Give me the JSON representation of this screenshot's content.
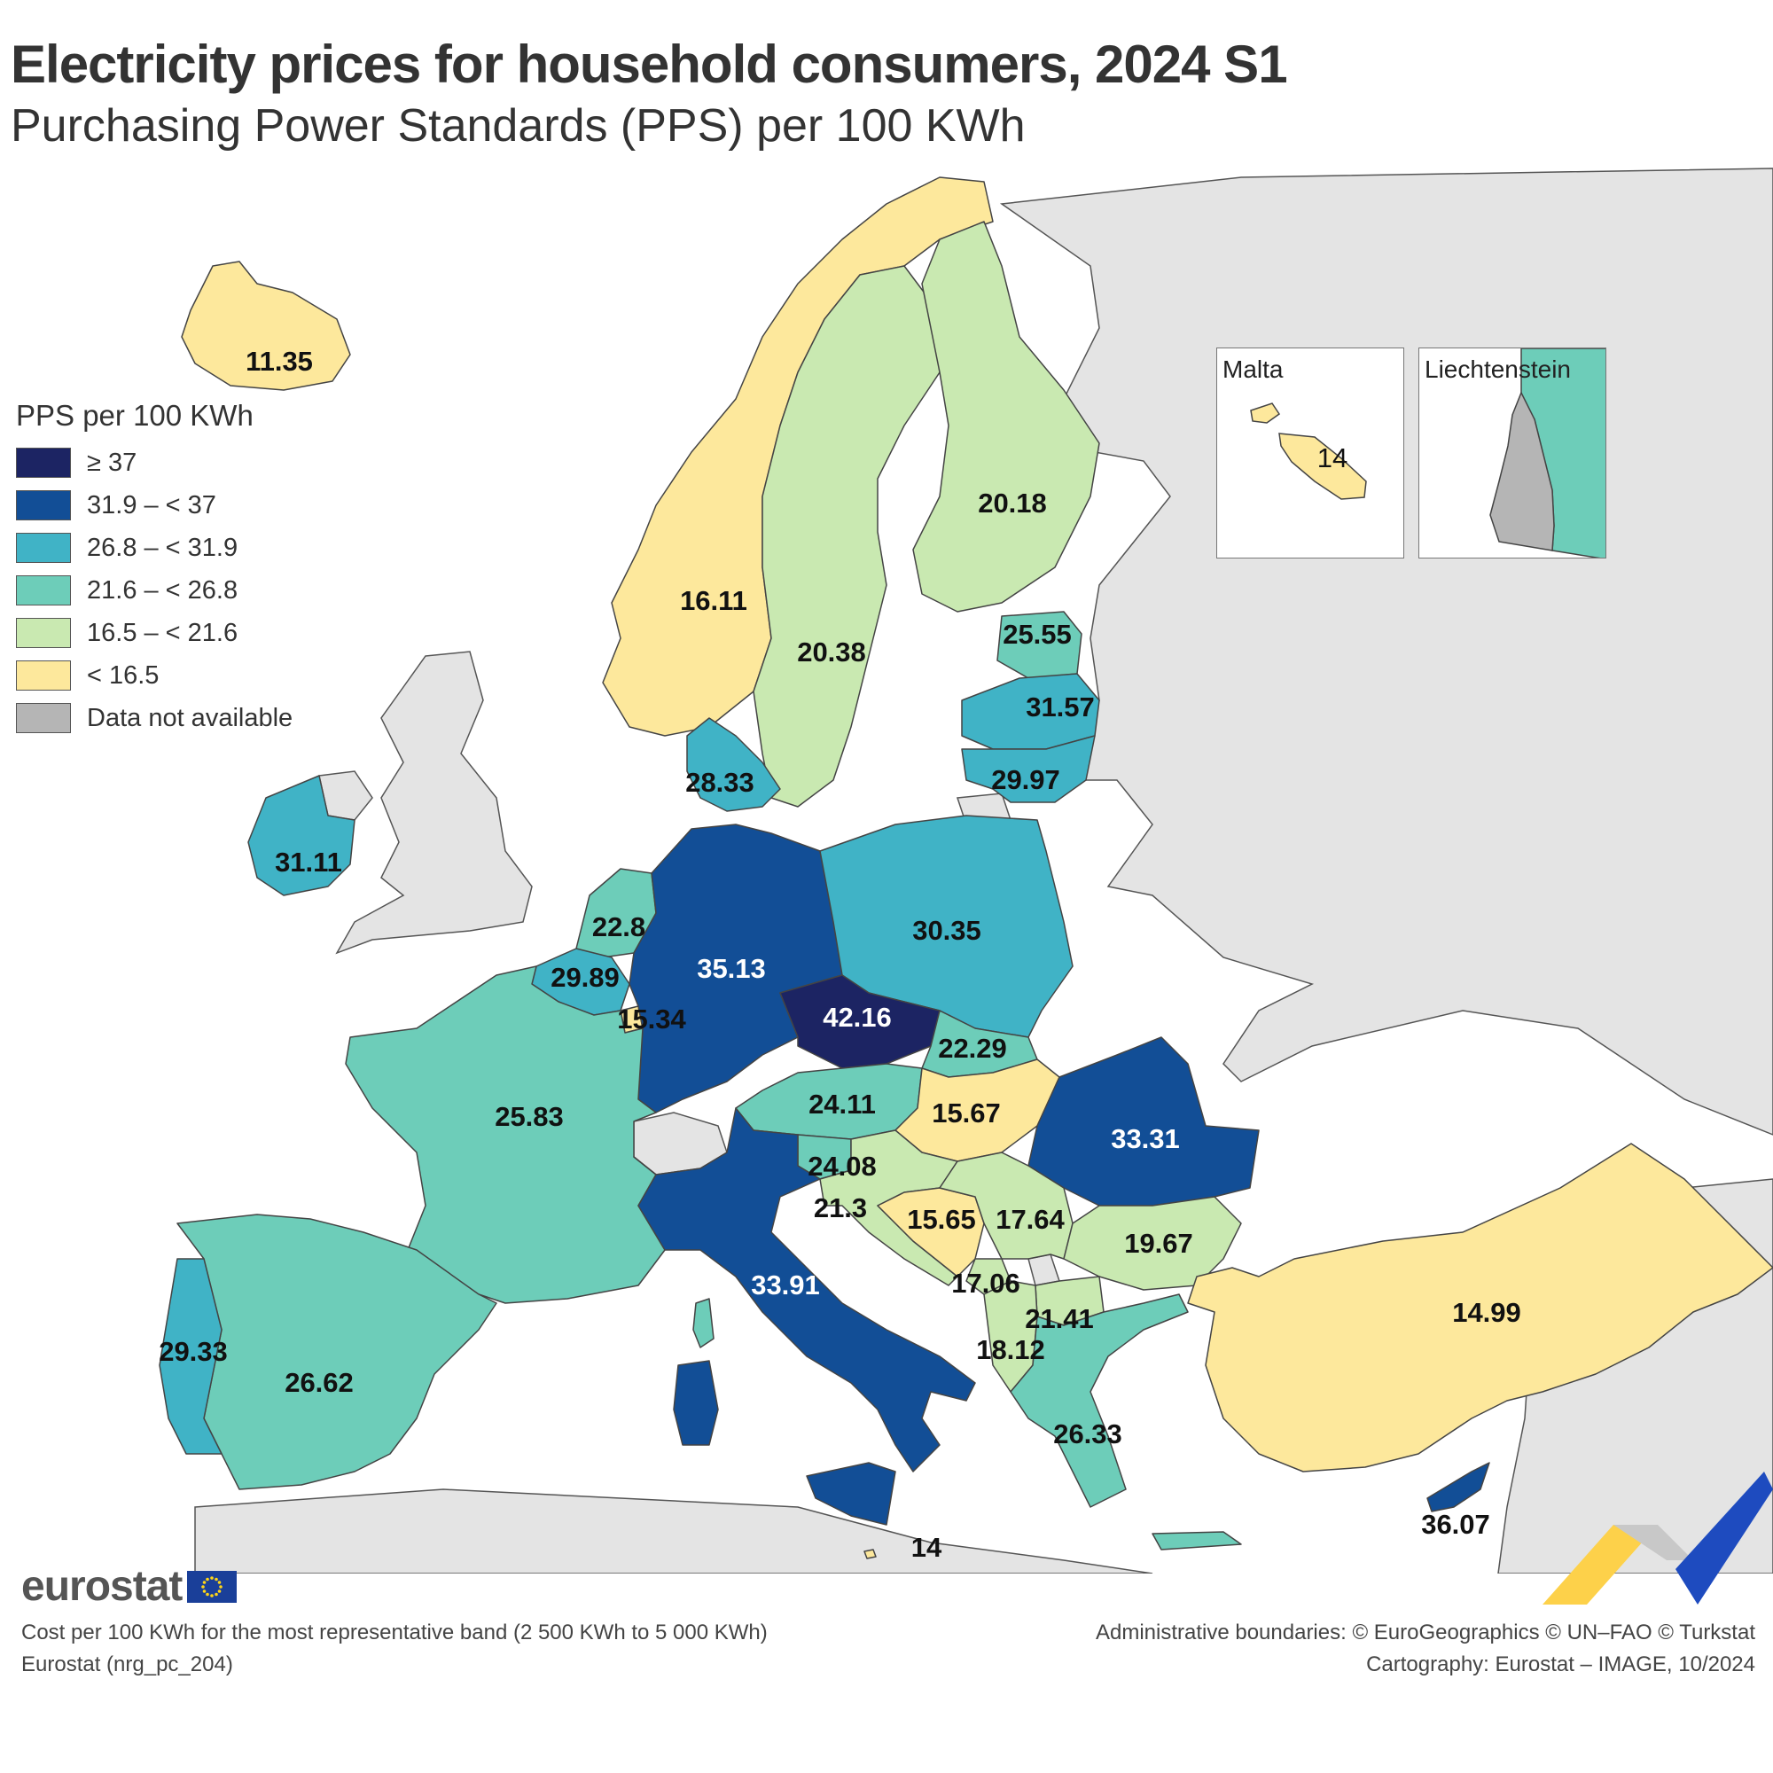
{
  "title": "Electricity prices for household consumers, 2024 S1",
  "subtitle": "Purchasing Power Standards (PPS) per 100 KWh",
  "legend": {
    "title": "PPS per 100 KWh",
    "items": [
      {
        "label": "≥ 37",
        "color": "#1c2463"
      },
      {
        "label": "31.9 – < 37",
        "color": "#124e96"
      },
      {
        "label": "26.8 – < 31.9",
        "color": "#40b3c6"
      },
      {
        "label": "21.6 – < 26.8",
        "color": "#6dcdb9"
      },
      {
        "label": "16.5 – < 21.6",
        "color": "#c9e9b1"
      },
      {
        "label": "< 16.5",
        "color": "#fde89c"
      },
      {
        "label": "Data not available",
        "color": "#b5b5b5"
      }
    ]
  },
  "colors": {
    "non_eu_land": "#e4e4e4",
    "sea": "#ffffff",
    "border": "#444444"
  },
  "regions": {
    "iceland": {
      "value": "11.35",
      "color": "#fde89c"
    },
    "norway": {
      "value": "16.11",
      "color": "#fde89c"
    },
    "sweden": {
      "value": "20.38",
      "color": "#c9e9b1"
    },
    "finland": {
      "value": "20.18",
      "color": "#c9e9b1"
    },
    "estonia": {
      "value": "25.55",
      "color": "#6dcdb9"
    },
    "latvia": {
      "value": "31.57",
      "color": "#40b3c6"
    },
    "lithuania": {
      "value": "29.97",
      "color": "#40b3c6"
    },
    "denmark": {
      "value": "28.33",
      "color": "#40b3c6"
    },
    "ireland": {
      "value": "31.11",
      "color": "#40b3c6"
    },
    "netherlands": {
      "value": "22.8",
      "color": "#6dcdb9"
    },
    "belgium": {
      "value": "29.89",
      "color": "#40b3c6"
    },
    "luxembourg": {
      "value": "15.34",
      "color": "#fde89c"
    },
    "germany": {
      "value": "35.13",
      "color": "#124e96"
    },
    "poland": {
      "value": "30.35",
      "color": "#40b3c6"
    },
    "czechia": {
      "value": "42.16",
      "color": "#1c2463"
    },
    "slovakia": {
      "value": "22.29",
      "color": "#6dcdb9"
    },
    "austria": {
      "value": "24.11",
      "color": "#6dcdb9"
    },
    "hungary": {
      "value": "15.67",
      "color": "#fde89c"
    },
    "romania": {
      "value": "33.31",
      "color": "#124e96"
    },
    "france": {
      "value": "25.83",
      "color": "#6dcdb9"
    },
    "slovenia": {
      "value": "24.08",
      "color": "#6dcdb9"
    },
    "croatia": {
      "value": "21.3",
      "color": "#c9e9b1"
    },
    "bosnia": {
      "value": "15.65",
      "color": "#fde89c"
    },
    "serbia": {
      "value": "17.64",
      "color": "#c9e9b1"
    },
    "bulgaria": {
      "value": "19.67",
      "color": "#c9e9b1"
    },
    "montenegro": {
      "value": "17.06",
      "color": "#c9e9b1"
    },
    "north_macedonia": {
      "value": "21.41",
      "color": "#c9e9b1"
    },
    "albania": {
      "value": "18.12",
      "color": "#c9e9b1"
    },
    "greece": {
      "value": "26.33",
      "color": "#6dcdb9"
    },
    "turkey": {
      "value": "14.99",
      "color": "#fde89c"
    },
    "cyprus": {
      "value": "36.07",
      "color": "#124e96"
    },
    "italy": {
      "value": "33.91",
      "color": "#124e96"
    },
    "spain": {
      "value": "26.62",
      "color": "#6dcdb9"
    },
    "portugal": {
      "value": "29.33",
      "color": "#40b3c6"
    },
    "malta_main": {
      "value": "14",
      "color": "#fde89c"
    }
  },
  "insets": {
    "malta": {
      "title": "Malta",
      "value": "14",
      "color": "#fde89c"
    },
    "liechtenstein": {
      "title": "Liechtenstein",
      "color": "#b5b5b5",
      "neighbour_color": "#6dcdb9"
    }
  },
  "logo": {
    "text": "eurostat"
  },
  "footer": {
    "note": "Cost per 100 KWh for the most representative band (2 500 KWh to 5 000 KWh)",
    "source": "Eurostat (nrg_pc_204)",
    "boundaries": "Administrative boundaries: © EuroGeographics © UN–FAO © Turkstat",
    "cartography": "Cartography: Eurostat – IMAGE, 10/2024"
  }
}
